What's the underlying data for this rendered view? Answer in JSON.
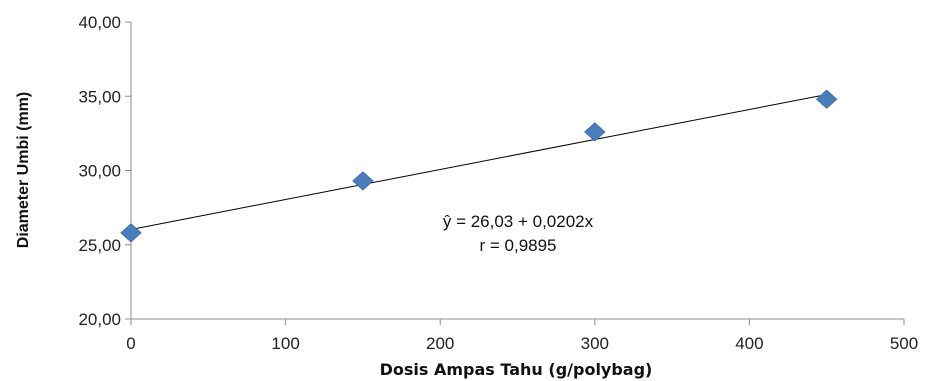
{
  "chart_data": {
    "type": "scatter",
    "xlabel": "Dosis Ampas Tahu (g/polybag)",
    "ylabel": "Diameter Umbi (mm)",
    "xlim": [
      0,
      500
    ],
    "ylim": [
      20,
      40
    ],
    "x_ticks": [
      "0",
      "100",
      "200",
      "300",
      "400",
      "500"
    ],
    "y_ticks": [
      "20,00",
      "25,00",
      "30,00",
      "35,00",
      "40,00"
    ],
    "series": [
      {
        "x": [
          0,
          150,
          300,
          450
        ],
        "y": [
          25.8,
          29.3,
          32.6,
          34.8
        ],
        "color": "#4a7ebb",
        "marker": "diamond"
      }
    ],
    "trendline": {
      "intercept": 26.03,
      "slope": 0.0202,
      "color": "#000000"
    },
    "annotations": [
      "ŷ = 26,03 + 0,0202x",
      "r = 0,9895"
    ],
    "grid": false,
    "legend": "none"
  }
}
